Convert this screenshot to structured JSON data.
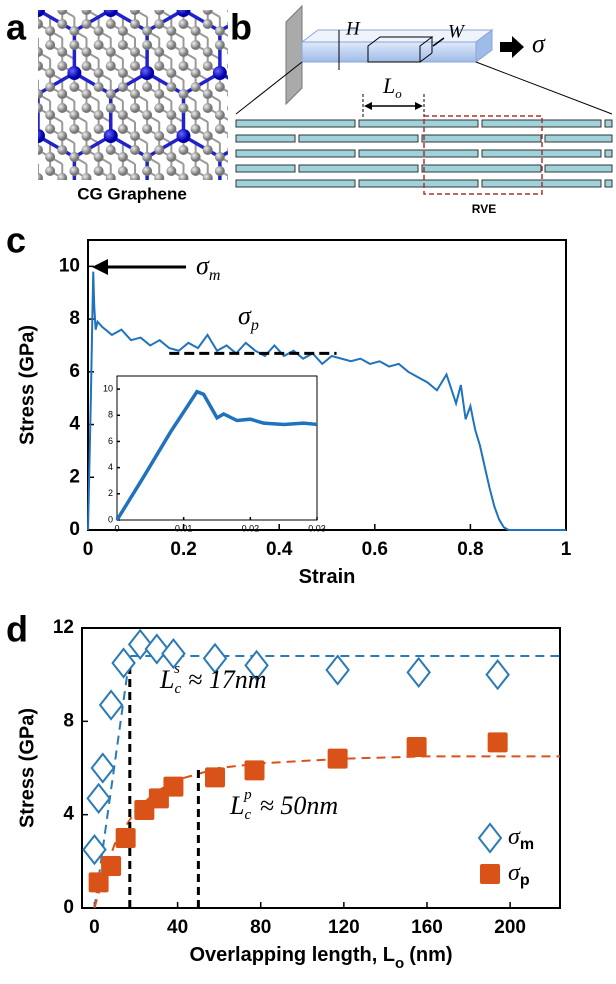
{
  "panel_labels": [
    "a",
    "b",
    "c",
    "d"
  ],
  "graphene": {
    "caption": "CG Graphene"
  },
  "schematic": {
    "height": "H",
    "width": "W",
    "stress": "σ",
    "overlap": "L",
    "overlap_sub": "o",
    "rve": "RVE"
  },
  "chart_data": [
    {
      "type": "line",
      "xlabel": "Strain",
      "ylabel": "Stress (GPa)",
      "xlim": [
        0,
        1
      ],
      "ylim": [
        0,
        11
      ],
      "xticks": [
        0,
        0.2,
        0.4,
        0.6,
        0.8,
        1
      ],
      "yticks": [
        0,
        2,
        4,
        6,
        8,
        10
      ],
      "box": true,
      "series": [
        {
          "color": "#1f72bd",
          "width": 2,
          "x": [
            0,
            0.003,
            0.006,
            0.009,
            0.011,
            0.013,
            0.016,
            0.02,
            0.03,
            0.05,
            0.07,
            0.09,
            0.11,
            0.13,
            0.15,
            0.17,
            0.19,
            0.21,
            0.23,
            0.25,
            0.27,
            0.29,
            0.31,
            0.33,
            0.35,
            0.37,
            0.39,
            0.41,
            0.43,
            0.45,
            0.47,
            0.49,
            0.51,
            0.53,
            0.55,
            0.57,
            0.59,
            0.61,
            0.63,
            0.65,
            0.67,
            0.69,
            0.71,
            0.73,
            0.75,
            0.77,
            0.78,
            0.79,
            0.8,
            0.81,
            0.82,
            0.83,
            0.84,
            0.85,
            0.86,
            0.87,
            0.88,
            0.9,
            0.95,
            1.0
          ],
          "values": [
            0,
            2.5,
            5,
            8,
            9.8,
            8.5,
            7.6,
            7.9,
            7.7,
            7.4,
            7.6,
            7.2,
            7.3,
            7.0,
            7.2,
            6.9,
            6.8,
            7.1,
            6.9,
            7.4,
            6.8,
            7.0,
            6.7,
            7.1,
            6.8,
            6.6,
            7.0,
            6.6,
            6.8,
            6.5,
            6.7,
            6.3,
            6.6,
            6.5,
            6.4,
            6.5,
            6.3,
            6.4,
            6.2,
            6.3,
            6.0,
            5.8,
            5.6,
            5.3,
            5.9,
            4.8,
            5.5,
            4.2,
            4.7,
            3.8,
            3.2,
            2.4,
            1.6,
            0.9,
            0.4,
            0.1,
            0,
            0,
            0,
            0
          ]
        }
      ],
      "mean_line": {
        "x": [
          0.17,
          0.52
        ],
        "value": 6.7
      },
      "annotations": [
        {
          "text": "σ",
          "sub": "m"
        },
        {
          "text": "σ",
          "sub": "p"
        }
      ]
    },
    {
      "type": "line",
      "xlim": [
        0,
        0.03
      ],
      "ylim": [
        0,
        11
      ],
      "xticks": [
        0,
        0.01,
        0.02,
        0.03
      ],
      "yticks": [
        0,
        2,
        4,
        6,
        8,
        10
      ],
      "box": true,
      "series": [
        {
          "color": "#1f72bd",
          "width": 3.5,
          "x": [
            0,
            0.004,
            0.008,
            0.012,
            0.013,
            0.015,
            0.016,
            0.018,
            0.02,
            0.022,
            0.025,
            0.028,
            0.03
          ],
          "values": [
            0,
            3.3,
            6.7,
            9.8,
            9.6,
            7.8,
            8.1,
            7.6,
            7.7,
            7.4,
            7.3,
            7.4,
            7.3
          ]
        }
      ]
    },
    {
      "type": "scatter",
      "xlabel": "Overlapping length, L",
      "xlabel_sub": "o",
      "xlabel_tail": "(nm)",
      "ylabel": "Stress (GPa)",
      "xlim": [
        -6,
        224
      ],
      "ylim": [
        0,
        12
      ],
      "xticks": [
        0,
        40,
        80,
        120,
        160,
        200
      ],
      "yticks": [
        0,
        4,
        8,
        12
      ],
      "box": true,
      "legend": "lower right",
      "series": [
        {
          "name": "σ",
          "name_sub": "m",
          "marker": "diamond",
          "color": "#2a7ab8",
          "x": [
            0,
            2,
            4,
            8,
            14,
            22,
            30,
            38,
            58,
            78,
            117,
            156,
            194
          ],
          "values": [
            2.5,
            4.7,
            6.0,
            8.7,
            10.5,
            11.3,
            11.1,
            10.9,
            10.7,
            10.4,
            10.2,
            10.1,
            10.0
          ]
        },
        {
          "name": "σ",
          "name_sub": "p",
          "marker": "square",
          "color": "#d95319",
          "x": [
            2,
            8,
            15,
            24,
            31,
            38,
            58,
            77,
            117,
            155,
            194
          ],
          "values": [
            1.1,
            1.8,
            3.0,
            4.2,
            4.7,
            5.2,
            5.6,
            5.9,
            6.4,
            6.9,
            7.1
          ]
        }
      ],
      "fits": [
        {
          "color": "#2a7ab8",
          "x": [
            0,
            17,
            224
          ],
          "values": [
            0,
            10.8,
            10.8
          ]
        },
        {
          "color": "#d95319",
          "x": [
            0,
            5,
            10,
            20,
            30,
            40,
            60,
            80,
            120,
            160,
            224
          ],
          "values": [
            0,
            1.6,
            2.8,
            4.2,
            5.0,
            5.5,
            6.0,
            6.2,
            6.4,
            6.5,
            6.5
          ]
        }
      ],
      "guides": [
        {
          "x": 17,
          "y": 10.3
        },
        {
          "x": 50,
          "y": 6.1
        }
      ],
      "annotations": [
        {
          "text": "L",
          "sub": "c",
          "sup": "s",
          "rest": "≈ 17nm"
        },
        {
          "text": "L",
          "sub": "c",
          "sup": "p",
          "rest": "≈ 50nm"
        }
      ]
    }
  ]
}
